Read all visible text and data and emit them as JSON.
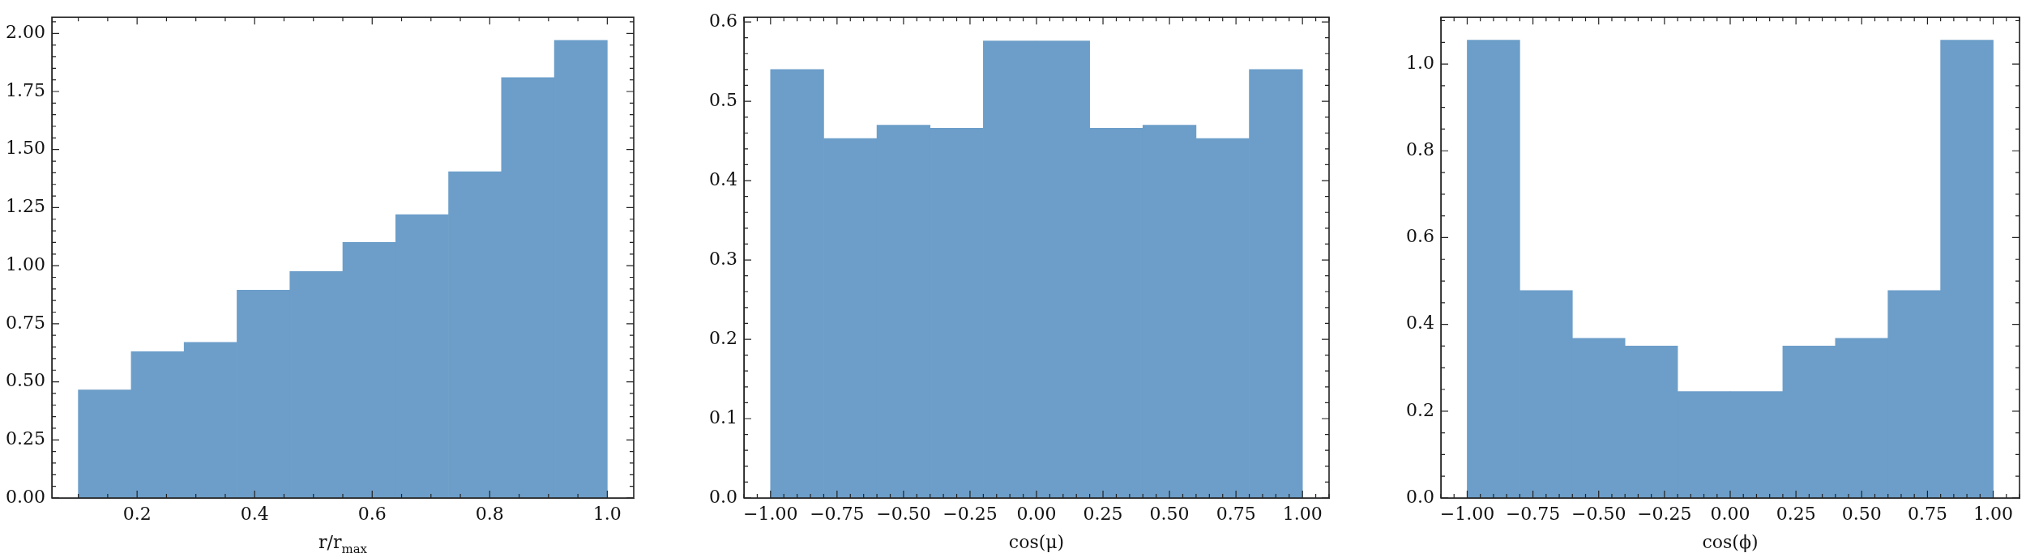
{
  "chart_data": [
    {
      "type": "histogram",
      "xlabel": "r/r$_{max}$",
      "color": "#6c9ec9",
      "bins": [
        0.1,
        0.19,
        0.28,
        0.37,
        0.46,
        0.55,
        0.64,
        0.73,
        0.82,
        0.91,
        1.0
      ],
      "values": [
        0.465,
        0.63,
        0.67,
        0.895,
        0.975,
        1.1,
        1.22,
        1.405,
        1.81,
        1.97
      ],
      "xlim": [
        0.055,
        1.045
      ],
      "ylim": [
        0,
        2.07
      ],
      "xticks": [
        0.2,
        0.4,
        0.6,
        0.8,
        {
          "value": 1,
          "label": "1.0"
        }
      ],
      "yticks": [
        {
          "value": 0,
          "label": "0.00"
        },
        {
          "value": 0.25,
          "label": "0.25"
        },
        {
          "value": 0.5,
          "label": "0.50"
        },
        {
          "value": 0.75,
          "label": "0.75"
        },
        {
          "value": 1,
          "label": "1.00"
        },
        {
          "value": 1.25,
          "label": "1.25"
        },
        {
          "value": 1.5,
          "label": "1.50"
        },
        {
          "value": 1.75,
          "label": "1.75"
        },
        {
          "value": 2,
          "label": "2.00"
        }
      ]
    },
    {
      "type": "histogram",
      "xlabel": "cos(μ)",
      "color": "#6c9ec9",
      "bins": [
        -1,
        -0.8,
        -0.6,
        -0.4,
        -0.2,
        0,
        0.2,
        0.4,
        0.6,
        0.8,
        1
      ],
      "values": [
        0.54,
        0.453,
        0.47,
        0.466,
        0.576,
        0.576,
        0.466,
        0.47,
        0.453,
        0.54
      ],
      "xlim": [
        -1.1,
        1.1
      ],
      "ylim": [
        0,
        0.606
      ],
      "xticks": [
        {
          "value": -1,
          "label": "−1.00"
        },
        {
          "value": -0.75,
          "label": "−0.75"
        },
        {
          "value": -0.5,
          "label": "−0.50"
        },
        {
          "value": -0.25,
          "label": "−0.25"
        },
        {
          "value": 0,
          "label": "0.00"
        },
        {
          "value": 0.25,
          "label": "0.25"
        },
        {
          "value": 0.5,
          "label": "0.50"
        },
        {
          "value": 0.75,
          "label": "0.75"
        },
        {
          "value": 1,
          "label": "1.00"
        }
      ],
      "yticks": [
        {
          "value": 0,
          "label": "0.0"
        },
        0.1,
        0.2,
        0.3,
        0.4,
        0.5,
        0.6
      ]
    },
    {
      "type": "histogram",
      "xlabel": "cos(ϕ)",
      "color": "#6c9ec9",
      "bins": [
        -1,
        -0.8,
        -0.6,
        -0.4,
        -0.2,
        0,
        0.2,
        0.4,
        0.6,
        0.8,
        1
      ],
      "values": [
        1.055,
        0.478,
        0.368,
        0.35,
        0.245,
        0.245,
        0.35,
        0.368,
        0.478,
        1.055
      ],
      "xlim": [
        -1.1,
        1.1
      ],
      "ylim": [
        0,
        1.108
      ],
      "xticks": [
        {
          "value": -1,
          "label": "−1.00"
        },
        {
          "value": -0.75,
          "label": "−0.75"
        },
        {
          "value": -0.5,
          "label": "−0.50"
        },
        {
          "value": -0.25,
          "label": "−0.25"
        },
        {
          "value": 0,
          "label": "0.00"
        },
        {
          "value": 0.25,
          "label": "0.25"
        },
        {
          "value": 0.5,
          "label": "0.50"
        },
        {
          "value": 0.75,
          "label": "0.75"
        },
        {
          "value": 1,
          "label": "1.00"
        }
      ],
      "yticks": [
        {
          "value": 0,
          "label": "0.0"
        },
        0.2,
        0.4,
        0.6,
        0.8,
        {
          "value": 1,
          "label": "1.0"
        }
      ]
    }
  ]
}
